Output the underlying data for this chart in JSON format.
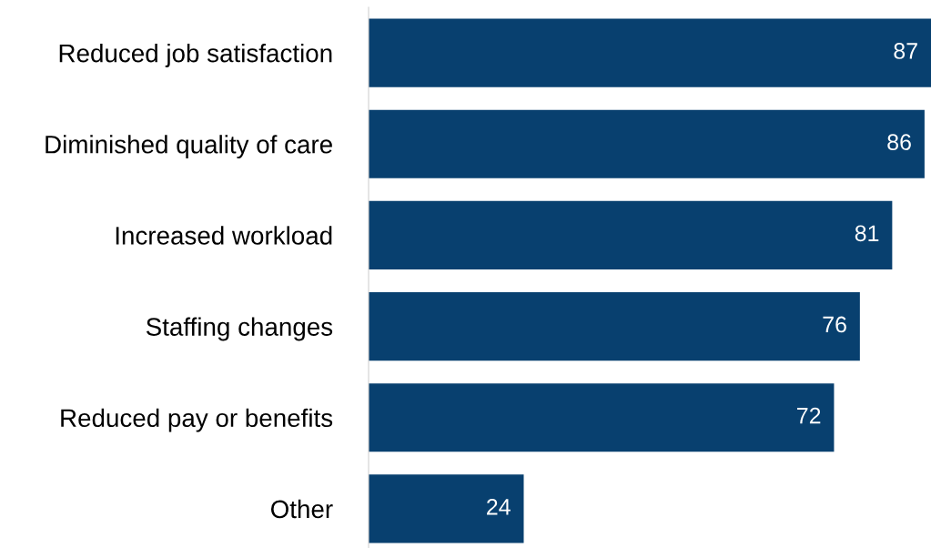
{
  "chart_data": {
    "type": "bar",
    "orientation": "horizontal",
    "categories": [
      "Reduced job satisfaction",
      "Diminished quality of care",
      "Increased workload",
      "Staffing changes",
      "Reduced pay or benefits",
      "Other"
    ],
    "values": [
      87,
      86,
      81,
      76,
      72,
      24
    ],
    "color": "#08406f",
    "xlim": [
      0,
      87
    ],
    "data_labels": true,
    "tick_labels": "y",
    "grid": false
  }
}
